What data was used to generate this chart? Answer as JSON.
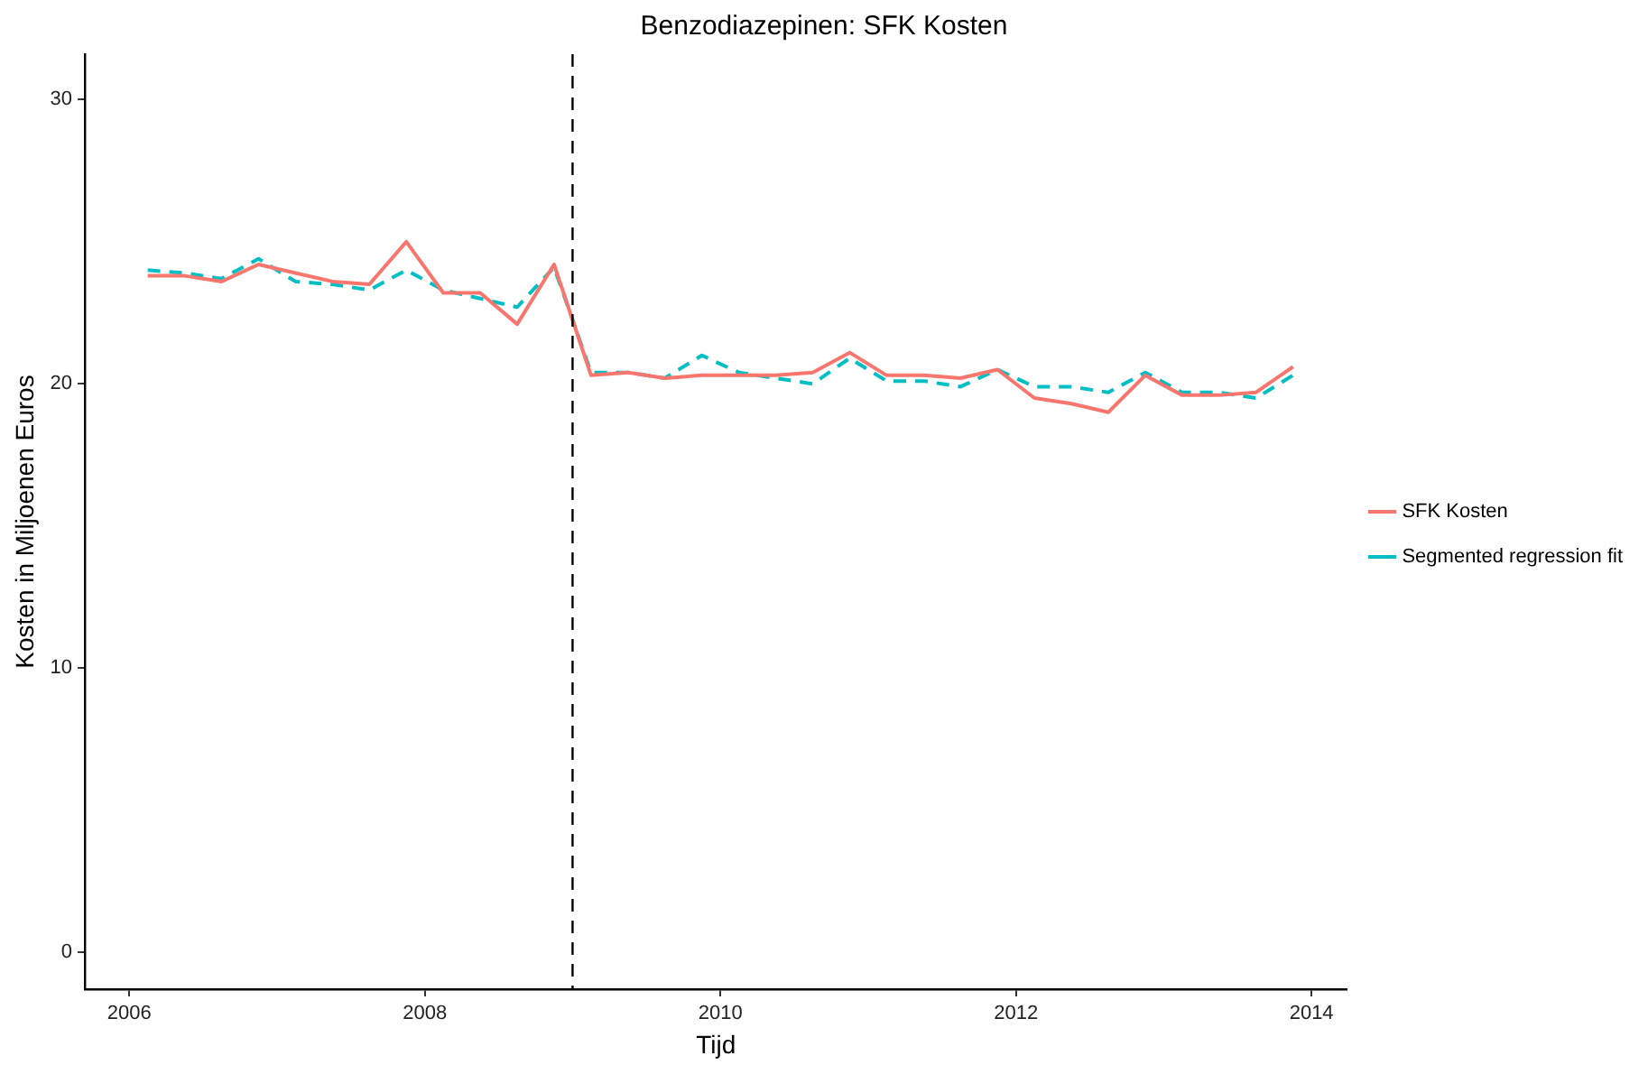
{
  "chart_data": {
    "type": "line",
    "title": "Benzodiazepinen: SFK Kosten",
    "xlabel": "Tijd",
    "ylabel": "Kosten in Miljoenen Euros",
    "x": [
      2006.125,
      2006.375,
      2006.625,
      2006.875,
      2007.125,
      2007.375,
      2007.625,
      2007.875,
      2008.125,
      2008.375,
      2008.625,
      2008.875,
      2009.125,
      2009.375,
      2009.625,
      2009.875,
      2010.125,
      2010.375,
      2010.625,
      2010.875,
      2011.125,
      2011.375,
      2011.625,
      2011.875,
      2012.125,
      2012.375,
      2012.625,
      2012.875,
      2013.125,
      2013.375,
      2013.625,
      2013.875
    ],
    "series": [
      {
        "name": "SFK Kosten",
        "color": "#f8766d",
        "line_style": "solid",
        "values": [
          23.8,
          23.8,
          23.6,
          24.2,
          23.9,
          23.6,
          23.5,
          25.0,
          23.2,
          23.2,
          22.1,
          24.2,
          20.3,
          20.4,
          20.2,
          20.3,
          20.3,
          20.3,
          20.4,
          21.1,
          20.3,
          20.3,
          20.2,
          20.5,
          19.5,
          19.3,
          19.0,
          20.3,
          19.6,
          19.6,
          19.7,
          20.6
        ]
      },
      {
        "name": "Segmented regression fit",
        "color": "#00bfc4",
        "line_style": "dashed",
        "values": [
          24.0,
          23.9,
          23.7,
          24.4,
          23.6,
          23.5,
          23.3,
          24.0,
          23.3,
          23.0,
          22.7,
          24.1,
          20.4,
          20.4,
          20.2,
          21.0,
          20.4,
          20.2,
          20.0,
          20.9,
          20.1,
          20.1,
          19.9,
          20.5,
          19.9,
          19.9,
          19.7,
          20.4,
          19.7,
          19.7,
          19.5,
          20.3
        ]
      }
    ],
    "xlim": [
      2005.7,
      2014.24
    ],
    "xticks": [
      2006,
      2008,
      2010,
      2012,
      2014
    ],
    "ylim": [
      -1.3,
      31.6
    ],
    "yticks": [
      0,
      10,
      20,
      30
    ],
    "ref_lines": [
      {
        "axis": "x",
        "value": 2009,
        "color": "#000000",
        "line_style": "dashed"
      }
    ],
    "grid": false,
    "legend": "right",
    "marker": "none"
  }
}
